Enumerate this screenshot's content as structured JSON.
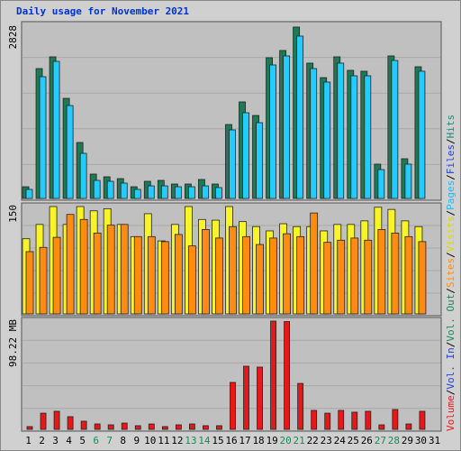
{
  "chart_data": {
    "type": "bar",
    "title": "Daily usage for November 2021",
    "title_color": "#0033cc",
    "categories": [
      "1",
      "2",
      "3",
      "4",
      "5",
      "6",
      "7",
      "8",
      "9",
      "10",
      "11",
      "12",
      "13",
      "14",
      "15",
      "16",
      "17",
      "18",
      "19",
      "20",
      "21",
      "22",
      "23",
      "24",
      "25",
      "26",
      "27",
      "28",
      "29",
      "30",
      "31"
    ],
    "category_colors": [
      "#000000",
      "#000000",
      "#000000",
      "#000000",
      "#000000",
      "#1a8a5a",
      "#1a8a5a",
      "#000000",
      "#000000",
      "#000000",
      "#000000",
      "#000000",
      "#1a8a5a",
      "#1a8a5a",
      "#000000",
      "#000000",
      "#000000",
      "#000000",
      "#000000",
      "#1a8a5a",
      "#1a8a5a",
      "#000000",
      "#000000",
      "#000000",
      "#000000",
      "#000000",
      "#1a8a5a",
      "#1a8a5a",
      "#000000",
      "#000000",
      "#000000"
    ],
    "panels": [
      {
        "ylim": [
          0,
          2828
        ],
        "yticks": [
          2828
        ],
        "series": [
          {
            "name": "Hits",
            "color": "#1e7a55",
            "values": [
              193,
              2143,
              2337,
              1652,
              923,
              402,
              357,
              327,
              193,
              283,
              298,
              238,
              238,
              313,
              238,
              1220,
              1593,
              1369,
              2322,
              2441,
              2828,
              2233,
              1994,
              2337,
              2114,
              2099,
              566,
              2352,
              655,
              2173,
              0
            ]
          },
          {
            "name": "Pages",
            "color": "#22ccff",
            "values": [
              149,
              2009,
              2262,
              1533,
              744,
              298,
              283,
              253,
              149,
              208,
              208,
              193,
              193,
              208,
              179,
              1131,
              1414,
              1250,
              2203,
              2352,
              2679,
              2143,
              1920,
              2233,
              2024,
              2024,
              476,
              2277,
              566,
              2099,
              0
            ]
          }
        ]
      },
      {
        "ylim": [
          0,
          150
        ],
        "yticks": [
          150
        ],
        "series": [
          {
            "name": "Visits",
            "color": "#f8f428",
            "values": [
              105,
              125,
              150,
              125,
              150,
              144,
              147,
              125,
              108,
              140,
              102,
              125,
              150,
              132,
              131,
              150,
              129,
              122,
              116,
              126,
              122,
              122,
              116,
              125,
              125,
              130,
              149,
              146,
              130,
              122,
              0
            ]
          },
          {
            "name": "Sites",
            "color": "#ff8c10",
            "values": [
              87,
              93,
              107,
              139,
              132,
              113,
              124,
              125,
              108,
              108,
              101,
              111,
              95,
              118,
              106,
              122,
              108,
              97,
              106,
              112,
              108,
              141,
              100,
              103,
              106,
              103,
              118,
              113,
              108,
              101,
              0
            ]
          }
        ]
      },
      {
        "ylim": [
          0,
          98.22
        ],
        "yticks": [
          {
            "value": 98.22,
            "label": "98.22 MB"
          }
        ],
        "series": [
          {
            "name": "Volume",
            "color": "#e81818",
            "values": [
              2.5,
              14.7,
              16.4,
              11.5,
              7.4,
              4.9,
              4.1,
              5.7,
              3.3,
              4.9,
              2.5,
              4.1,
              4.9,
              3.3,
              3.3,
              42.6,
              57.3,
              56.5,
              98.22,
              97.8,
              41.7,
              17.2,
              14.7,
              17.2,
              15.6,
              16.4,
              4.1,
              18.0,
              4.9,
              16.4,
              0
            ]
          }
        ]
      }
    ],
    "side_legend_separator": "/",
    "side_legend": [
      {
        "text": "Volume",
        "color": "#e81818"
      },
      {
        "text": "Vol. In",
        "color": "#2244cc"
      },
      {
        "text": "Vol. Out",
        "color": "#1a8a5a"
      },
      {
        "text": "Sites",
        "color": "#ff8c10"
      },
      {
        "text": "Visits",
        "color": "#e0d800"
      },
      {
        "text": "Pages",
        "color": "#22bbee"
      },
      {
        "text": "Files",
        "color": "#2244cc"
      },
      {
        "text": "Hits",
        "color": "#1a8a7a"
      }
    ]
  }
}
